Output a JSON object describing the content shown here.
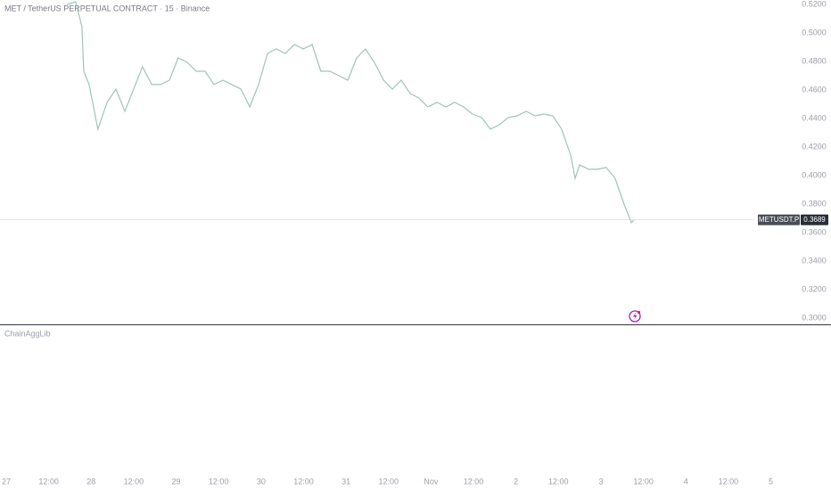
{
  "chart_data": {
    "type": "line",
    "title": "MET / TetherUS PERPETUAL CONTRACT · 15 · Binance",
    "indicator": "ChainAggLib",
    "symbol": "METUSDT.P",
    "last_price": 0.3689,
    "color": "#9fc4b7",
    "x": [
      17.1,
      19.6,
      21.4,
      21.9,
      23.4,
      25.9,
      28.5,
      31.0,
      33.5,
      36.0,
      38.5,
      41.1,
      43.6,
      46.1,
      48.6,
      51.1,
      53.7,
      56.2,
      58.7,
      61.2,
      63.7,
      66.3,
      68.8,
      71.3,
      73.8,
      76.3,
      78.8,
      81.4,
      83.9,
      86.4,
      88.9,
      91.4,
      94.0,
      96.5,
      99.0,
      101.5,
      104.0,
      106.6,
      109.1,
      111.6,
      114.1,
      116.6,
      119.1,
      121.7,
      124.2,
      126.7,
      129.2,
      131.7,
      134.3,
      136.8,
      139.3,
      141.8,
      144.3,
      146.9,
      149.4,
      151.9,
      154.4,
      156.9,
      159.5,
      160.7,
      162.0,
      164.5,
      167.0,
      169.5,
      172.0,
      174.6,
      176.6,
      177.3
    ],
    "values": [
      0.52,
      0.5219,
      0.5044,
      0.4731,
      0.4638,
      0.4325,
      0.4513,
      0.4606,
      0.445,
      0.4606,
      0.4763,
      0.4638,
      0.4638,
      0.4669,
      0.4825,
      0.4794,
      0.4731,
      0.4731,
      0.4638,
      0.4669,
      0.4638,
      0.4606,
      0.4481,
      0.4638,
      0.4856,
      0.4888,
      0.4856,
      0.4919,
      0.4888,
      0.4919,
      0.4731,
      0.4731,
      0.47,
      0.4669,
      0.4825,
      0.4888,
      0.4794,
      0.4669,
      0.4606,
      0.4669,
      0.4575,
      0.4544,
      0.4481,
      0.4513,
      0.4481,
      0.4513,
      0.4481,
      0.4431,
      0.4406,
      0.4325,
      0.4356,
      0.4406,
      0.4419,
      0.445,
      0.4419,
      0.4431,
      0.4419,
      0.4325,
      0.4138,
      0.3981,
      0.4075,
      0.4044,
      0.4044,
      0.4056,
      0.3981,
      0.3794,
      0.3669,
      0.3689
    ],
    "xlim": [
      -1.76,
      233.0
    ],
    "xticks": [
      {
        "value": 0,
        "label": "27"
      },
      {
        "value": 12,
        "label": "12:00"
      },
      {
        "value": 24,
        "label": "28"
      },
      {
        "value": 36,
        "label": "12:00"
      },
      {
        "value": 48,
        "label": "29"
      },
      {
        "value": 60,
        "label": "12:00"
      },
      {
        "value": 72,
        "label": "30"
      },
      {
        "value": 84,
        "label": "12:00"
      },
      {
        "value": 96,
        "label": "31"
      },
      {
        "value": 108,
        "label": "12:00"
      },
      {
        "value": 120,
        "label": "Nov"
      },
      {
        "value": 132,
        "label": "12:00"
      },
      {
        "value": 144,
        "label": "2"
      },
      {
        "value": 156,
        "label": "12:00"
      },
      {
        "value": 168,
        "label": "3"
      },
      {
        "value": 180,
        "label": "12:00"
      },
      {
        "value": 192,
        "label": "4"
      },
      {
        "value": 204,
        "label": "12:00"
      },
      {
        "value": 216,
        "label": "5"
      }
    ],
    "ylim": [
      0.29563,
      0.52313
    ],
    "yticks": [
      {
        "value": 0.52,
        "label": "0.5200"
      },
      {
        "value": 0.5,
        "label": "0.5000"
      },
      {
        "value": 0.48,
        "label": "0.4800"
      },
      {
        "value": 0.46,
        "label": "0.4600"
      },
      {
        "value": 0.44,
        "label": "0.4400"
      },
      {
        "value": 0.42,
        "label": "0.4200"
      },
      {
        "value": 0.4,
        "label": "0.4000"
      },
      {
        "value": 0.38,
        "label": "0.3800"
      },
      {
        "value": 0.36,
        "label": "0.3600"
      },
      {
        "value": 0.34,
        "label": "0.3400"
      },
      {
        "value": 0.32,
        "label": "0.3200"
      },
      {
        "value": 0.3,
        "label": "0.3000"
      }
    ]
  }
}
